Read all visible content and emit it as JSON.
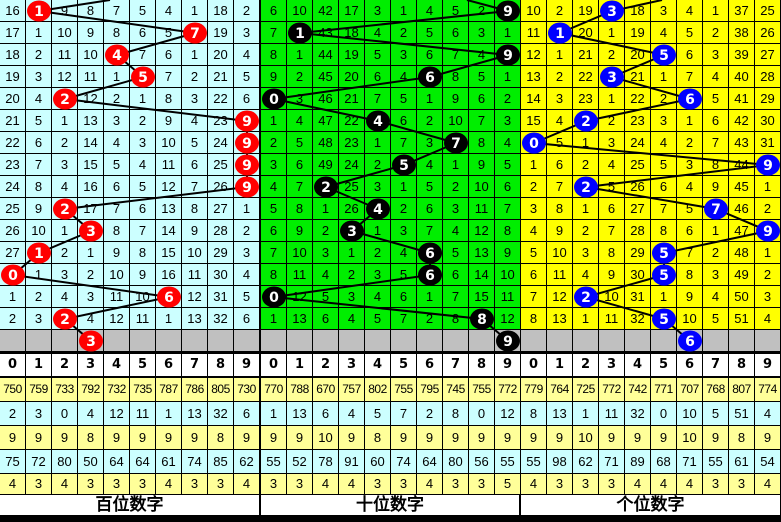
{
  "digits": [
    "0",
    "1",
    "2",
    "3",
    "4",
    "5",
    "6",
    "7",
    "8",
    "9"
  ],
  "panels": [
    {
      "label": "百位数字",
      "cell_color": "#ccffff",
      "ball_color": "#ff0000",
      "draws": [
        1,
        7,
        4,
        5,
        2,
        9,
        9,
        9,
        9,
        2,
        3,
        1,
        0,
        6,
        2
      ],
      "prediction": 3,
      "rows": [
        [
          16,
          1,
          9,
          8,
          7,
          5,
          4,
          1,
          18,
          2
        ],
        [
          17,
          1,
          10,
          9,
          8,
          6,
          5,
          7,
          19,
          3
        ],
        [
          18,
          2,
          11,
          10,
          4,
          7,
          6,
          1,
          20,
          4
        ],
        [
          19,
          3,
          12,
          11,
          1,
          5,
          7,
          2,
          21,
          5
        ],
        [
          20,
          4,
          2,
          12,
          2,
          1,
          8,
          3,
          22,
          6
        ],
        [
          21,
          5,
          1,
          13,
          3,
          2,
          9,
          4,
          23,
          9
        ],
        [
          22,
          6,
          2,
          14,
          4,
          3,
          10,
          5,
          24,
          9
        ],
        [
          23,
          7,
          3,
          15,
          5,
          4,
          11,
          6,
          25,
          9
        ],
        [
          24,
          8,
          4,
          16,
          6,
          5,
          12,
          7,
          26,
          9
        ],
        [
          25,
          9,
          2,
          17,
          7,
          6,
          13,
          8,
          27,
          1
        ],
        [
          26,
          10,
          1,
          3,
          8,
          7,
          14,
          9,
          28,
          2
        ],
        [
          27,
          1,
          2,
          1,
          9,
          8,
          15,
          10,
          29,
          3
        ],
        [
          0,
          1,
          3,
          2,
          10,
          9,
          16,
          11,
          30,
          4
        ],
        [
          1,
          2,
          4,
          3,
          11,
          10,
          6,
          12,
          31,
          5
        ],
        [
          2,
          3,
          2,
          4,
          12,
          11,
          1,
          13,
          32,
          6
        ]
      ],
      "stats": [
        [
          750,
          759,
          733,
          792,
          732,
          735,
          787,
          786,
          805,
          730
        ],
        [
          2,
          3,
          0,
          4,
          12,
          11,
          1,
          13,
          32,
          6
        ],
        [
          9,
          9,
          9,
          8,
          9,
          9,
          9,
          9,
          8,
          9
        ],
        [
          75,
          72,
          80,
          50,
          64,
          64,
          61,
          74,
          85,
          62
        ],
        [
          4,
          3,
          4,
          3,
          3,
          3,
          4,
          3,
          3,
          4
        ]
      ]
    },
    {
      "label": "十位数字",
      "cell_color": "#00ee00",
      "ball_color": "#000000",
      "draws": [
        9,
        1,
        9,
        6,
        0,
        4,
        7,
        5,
        2,
        4,
        3,
        6,
        6,
        0,
        8
      ],
      "prediction": 9,
      "rows": [
        [
          6,
          10,
          42,
          17,
          3,
          1,
          4,
          5,
          2,
          9
        ],
        [
          7,
          1,
          43,
          18,
          4,
          2,
          5,
          6,
          3,
          1
        ],
        [
          8,
          1,
          44,
          19,
          5,
          3,
          6,
          7,
          4,
          9
        ],
        [
          9,
          2,
          45,
          20,
          6,
          4,
          6,
          8,
          5,
          1
        ],
        [
          0,
          3,
          46,
          21,
          7,
          5,
          1,
          9,
          6,
          2
        ],
        [
          1,
          4,
          47,
          22,
          4,
          6,
          2,
          10,
          7,
          3
        ],
        [
          2,
          5,
          48,
          23,
          1,
          7,
          3,
          7,
          8,
          4
        ],
        [
          3,
          6,
          49,
          24,
          2,
          5,
          4,
          1,
          9,
          5
        ],
        [
          4,
          7,
          2,
          25,
          3,
          1,
          5,
          2,
          10,
          6
        ],
        [
          5,
          8,
          1,
          26,
          4,
          2,
          6,
          3,
          11,
          7
        ],
        [
          6,
          9,
          2,
          3,
          1,
          3,
          7,
          4,
          12,
          8
        ],
        [
          7,
          10,
          3,
          1,
          2,
          4,
          6,
          5,
          13,
          9
        ],
        [
          8,
          11,
          4,
          2,
          3,
          5,
          6,
          6,
          14,
          10
        ],
        [
          0,
          12,
          5,
          3,
          4,
          6,
          1,
          7,
          15,
          11
        ],
        [
          1,
          13,
          6,
          4,
          5,
          7,
          2,
          8,
          8,
          12
        ]
      ],
      "stats": [
        [
          770,
          788,
          670,
          757,
          802,
          755,
          795,
          745,
          755,
          772
        ],
        [
          1,
          13,
          6,
          4,
          5,
          7,
          2,
          8,
          0,
          12
        ],
        [
          9,
          9,
          10,
          9,
          8,
          9,
          9,
          9,
          9,
          9
        ],
        [
          55,
          52,
          78,
          91,
          60,
          74,
          64,
          80,
          56,
          55
        ],
        [
          3,
          3,
          4,
          4,
          3,
          3,
          4,
          3,
          3,
          5
        ]
      ]
    },
    {
      "label": "个位数字",
      "cell_color": "#ffff00",
      "ball_color": "#0000ff",
      "draws": [
        3,
        1,
        5,
        3,
        6,
        2,
        0,
        9,
        2,
        7,
        9,
        5,
        5,
        2,
        5
      ],
      "prediction": 6,
      "rows": [
        [
          10,
          2,
          19,
          3,
          18,
          3,
          4,
          1,
          37,
          25
        ],
        [
          11,
          1,
          20,
          1,
          19,
          4,
          5,
          2,
          38,
          26
        ],
        [
          12,
          1,
          21,
          2,
          20,
          5,
          6,
          3,
          39,
          27
        ],
        [
          13,
          2,
          22,
          3,
          21,
          1,
          7,
          4,
          40,
          28
        ],
        [
          14,
          3,
          23,
          1,
          22,
          2,
          6,
          5,
          41,
          29
        ],
        [
          15,
          4,
          2,
          2,
          23,
          3,
          1,
          6,
          42,
          30
        ],
        [
          0,
          5,
          1,
          3,
          24,
          4,
          2,
          7,
          43,
          31
        ],
        [
          1,
          6,
          2,
          4,
          25,
          5,
          3,
          8,
          44,
          9
        ],
        [
          2,
          7,
          2,
          5,
          26,
          6,
          4,
          9,
          45,
          1
        ],
        [
          3,
          8,
          1,
          6,
          27,
          7,
          5,
          7,
          46,
          2
        ],
        [
          4,
          9,
          2,
          7,
          28,
          8,
          6,
          1,
          47,
          9
        ],
        [
          5,
          10,
          3,
          8,
          29,
          5,
          7,
          2,
          48,
          1
        ],
        [
          6,
          11,
          4,
          9,
          30,
          5,
          8,
          3,
          49,
          2
        ],
        [
          7,
          12,
          2,
          10,
          31,
          1,
          9,
          4,
          50,
          3
        ],
        [
          8,
          13,
          1,
          11,
          32,
          5,
          10,
          5,
          51,
          4
        ]
      ],
      "stats": [
        [
          779,
          764,
          725,
          772,
          742,
          771,
          707,
          768,
          807,
          774
        ],
        [
          8,
          13,
          1,
          11,
          32,
          0,
          10,
          5,
          51,
          4
        ],
        [
          9,
          9,
          10,
          9,
          9,
          9,
          10,
          9,
          8,
          9
        ],
        [
          55,
          98,
          62,
          71,
          89,
          68,
          71,
          55,
          61,
          54
        ],
        [
          4,
          3,
          3,
          3,
          4,
          4,
          4,
          3,
          3,
          4
        ]
      ]
    }
  ],
  "stat_row_colors": [
    "#ffff99",
    "#ccffff",
    "#ffff99",
    "#ccffff",
    "#ffff99"
  ],
  "gray_color": "#c0c0c0"
}
